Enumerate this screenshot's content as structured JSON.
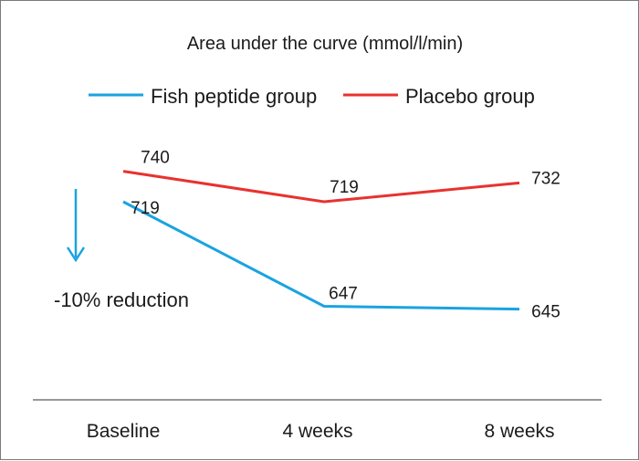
{
  "chart_data": {
    "type": "line",
    "title": "Area under the curve (mmol/l/min)",
    "categories": [
      "Baseline",
      "4 weeks",
      "8 weeks"
    ],
    "series": [
      {
        "name": "Fish peptide group",
        "values": [
          719,
          647,
          645
        ],
        "color": "#1aa3e0"
      },
      {
        "name": "Placebo group",
        "values": [
          740,
          719,
          732
        ],
        "color": "#e8322f"
      }
    ],
    "annotation": "-10% reduction",
    "legend": "top",
    "grid": false
  }
}
